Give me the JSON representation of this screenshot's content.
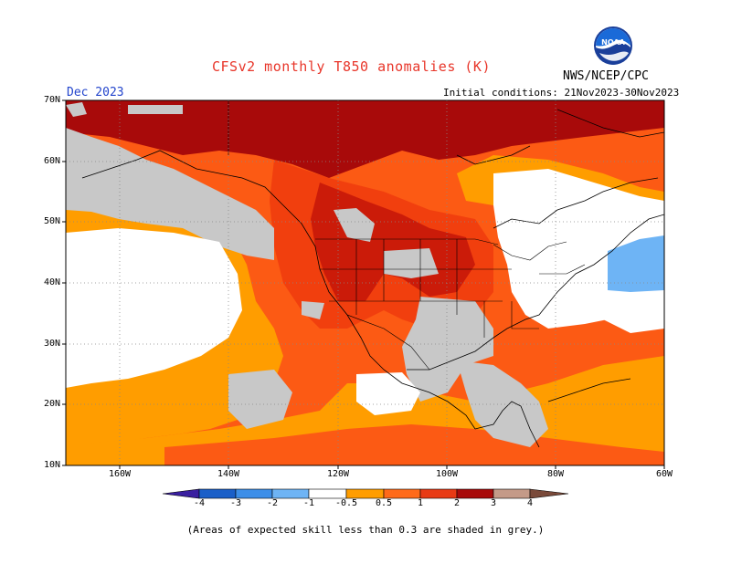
{
  "title": "CFSv2 monthly T850 anomalies (K)",
  "month": "Dec 2023",
  "initial_conditions": "Initial conditions: 21Nov2023-30Nov2023",
  "org": "NWS/NCEP/CPC",
  "logo_text": "NOAA",
  "lat_labels": [
    "70N",
    "60N",
    "50N",
    "40N",
    "30N",
    "20N",
    "10N"
  ],
  "lon_labels": [
    "160W",
    "140W",
    "120W",
    "100W",
    "80W",
    "60W"
  ],
  "colorbar": {
    "ticks": [
      "-4",
      "-3",
      "-2",
      "-1",
      "-0.5",
      "0.5",
      "1",
      "2",
      "3",
      "4"
    ],
    "colors": [
      "#3a1fa0",
      "#1a5fc8",
      "#3c8ee8",
      "#6eb4f5",
      "#ffffff",
      "#ff9d00",
      "#ff6a1a",
      "#e83a14",
      "#a80a0a",
      "#c49a88",
      "#7a4a3a"
    ]
  },
  "footnote": "(Areas of expected skill less than 0.3 are shaded in grey.)",
  "legend_colors": {
    "white": "#ffffff",
    "grey": "#c8c8c8",
    "orange_05_1": "#ff9d00",
    "orange_1_2": "#fc5a14",
    "red_2_3": "#e82a0a",
    "darkred_3_4": "#a80a0a",
    "lightblue_m1_m05": "#6eb4f5"
  }
}
